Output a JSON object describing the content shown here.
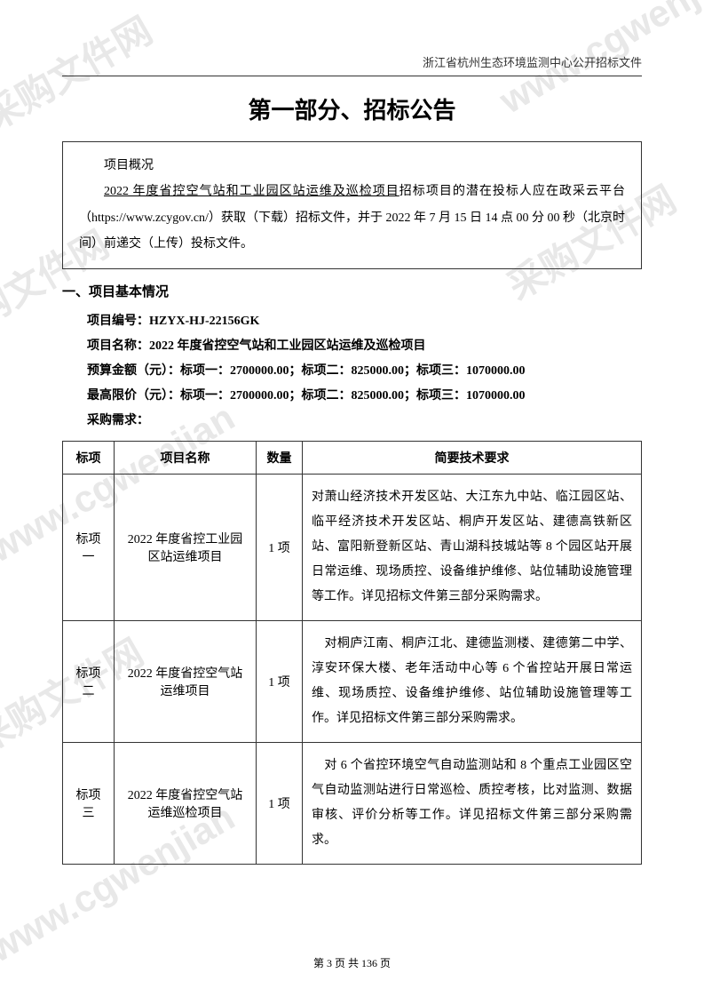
{
  "watermark_text": "www.cgwenjian.com",
  "watermark_cn": "采购文件网",
  "header": "浙江省杭州生态环境监测中心公开招标文件",
  "main_title": "第一部分、招标公告",
  "summary": {
    "title": "项目概况",
    "line1_underline": "2022 年度省控空气站和工业园区站运维及巡检项目",
    "line1_rest": "招标项目的潜在投标人应在政采云平台（https://www.zcygov.cn/）获取（下载）招标文件，并于 2022 年 7 月 15 日 14 点 00 分 00 秒（北京时间）前递交（上传）投标文件。"
  },
  "section1_title": "一、项目基本情况",
  "project_code_label": "项目编号：",
  "project_code": "HZYX-HJ-22156GK",
  "project_name_label": "项目名称：",
  "project_name": "2022 年度省控空气站和工业园区站运维及巡检项目",
  "budget_label": "预算金额（元）：",
  "budget_value": "标项一：2700000.00；标项二：825000.00；标项三：1070000.00",
  "max_price_label": "最高限价（元）：",
  "max_price_value": "标项一：2700000.00；标项二：825000.00；标项三：1070000.00",
  "purchase_req_label": "采购需求：",
  "table": {
    "headers": {
      "bid": "标项",
      "name": "项目名称",
      "qty": "数量",
      "req": "简要技术要求"
    },
    "rows": [
      {
        "bid": "标项一",
        "name": "2022 年度省控工业园区站运维项目",
        "qty": "1 项",
        "desc": "对萧山经济技术开发区站、大江东九中站、临江园区站、临平经济技术开发区站、桐庐开发区站、建德高铁新区站、富阳新登新区站、青山湖科技城站等 8 个园区站开展日常运维、现场质控、设备维护维修、站位辅助设施管理等工作。详见招标文件第三部分采购需求。"
      },
      {
        "bid": "标项二",
        "name": "2022 年度省控空气站运维项目",
        "qty": "1 项",
        "desc": "　对桐庐江南、桐庐江北、建德监测楼、建德第二中学、淳安环保大楼、老年活动中心等 6 个省控站开展日常运维、现场质控、设备维护维修、站位辅助设施管理等工作。详见招标文件第三部分采购需求。"
      },
      {
        "bid": "标项三",
        "name": "2022 年度省控空气站运维巡检项目",
        "qty": "1 项",
        "desc": "　对 6 个省控环境空气自动监测站和 8 个重点工业园区空气自动监测站进行日常巡检、质控考核，比对监测、数据审核、评价分析等工作。详见招标文件第三部分采购需求。"
      }
    ]
  },
  "footer": "第 3 页 共 136 页"
}
